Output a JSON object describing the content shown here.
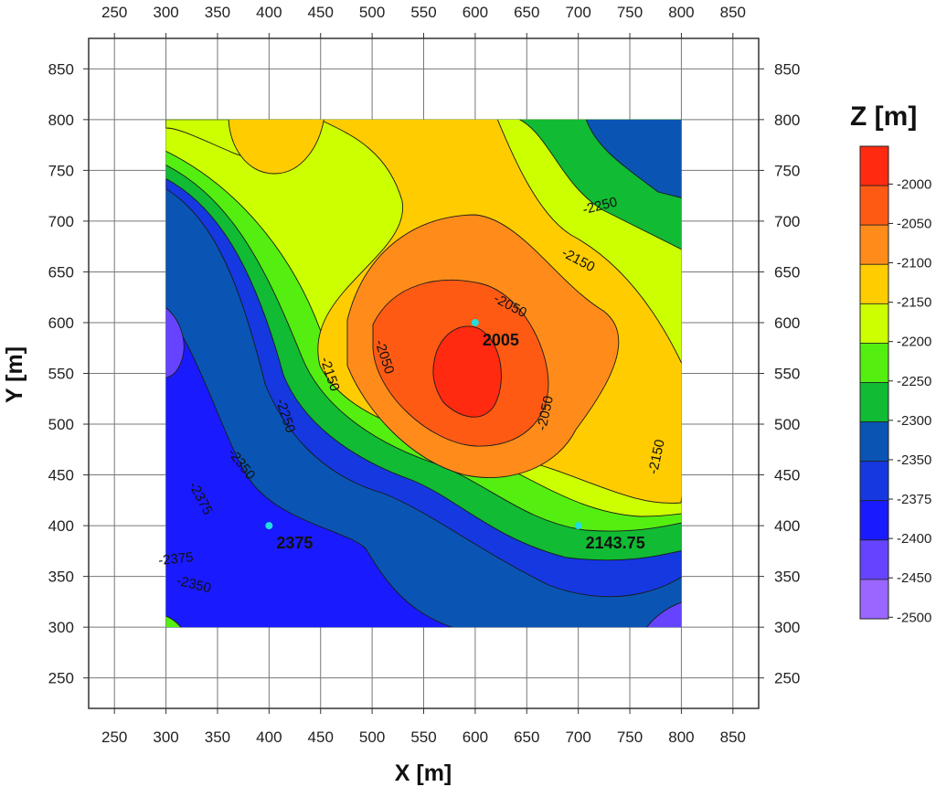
{
  "chart_data": {
    "type": "heatmap",
    "subtype": "filled-contour",
    "title": "",
    "xlabel": "X [m]",
    "ylabel": "Y [m]",
    "xlim": [
      225,
      875
    ],
    "ylim": [
      220,
      880
    ],
    "x_ticks": [
      250,
      300,
      350,
      400,
      450,
      500,
      550,
      600,
      650,
      700,
      750,
      800,
      850
    ],
    "y_ticks": [
      250,
      300,
      350,
      400,
      450,
      500,
      550,
      600,
      650,
      700,
      750,
      800,
      850
    ],
    "grid": true,
    "data_extent": {
      "x": [
        300,
        800
      ],
      "y": [
        300,
        800
      ]
    },
    "color_scale": {
      "title": "Z [m]",
      "labels": [
        "-2000",
        "-2050",
        "-2100",
        "-2150",
        "-2200",
        "-2250",
        "-2300",
        "-2350",
        "-2375",
        "-2400",
        "-2450",
        "-2500"
      ],
      "colors": [
        "#ff2a10",
        "#ff5a14",
        "#ff8c1a",
        "#ffcc00",
        "#ccff00",
        "#55ee11",
        "#11bb33",
        "#0a55b4",
        "#1538e0",
        "#1a1aff",
        "#6644ff",
        "#9966ff"
      ]
    },
    "wells": [
      {
        "x": 600,
        "y": 600,
        "label": "2005"
      },
      {
        "x": 400,
        "y": 400,
        "label": "2375"
      },
      {
        "x": 700,
        "y": 400,
        "label": "2143.75"
      }
    ],
    "contour_labels": [
      {
        "text": "-2250",
        "x": 722,
        "y": 711,
        "angle": -14
      },
      {
        "text": "-2150",
        "x": 698,
        "y": 658,
        "angle": 28
      },
      {
        "text": "-2050",
        "x": 632,
        "y": 613,
        "angle": 28
      },
      {
        "text": "-2050",
        "x": 508,
        "y": 565,
        "angle": 72
      },
      {
        "text": "-2050",
        "x": 672,
        "y": 510,
        "angle": -78
      },
      {
        "text": "-2150",
        "x": 455,
        "y": 548,
        "angle": 72
      },
      {
        "text": "-2150",
        "x": 780,
        "y": 467,
        "angle": -78
      },
      {
        "text": "-2250",
        "x": 412,
        "y": 507,
        "angle": 72
      },
      {
        "text": "-2350",
        "x": 370,
        "y": 458,
        "angle": 52
      },
      {
        "text": "-2375",
        "x": 330,
        "y": 425,
        "angle": 62
      },
      {
        "text": "-2375",
        "x": 310,
        "y": 363,
        "angle": -6
      },
      {
        "text": "-2350",
        "x": 326,
        "y": 338,
        "angle": 14
      }
    ]
  }
}
